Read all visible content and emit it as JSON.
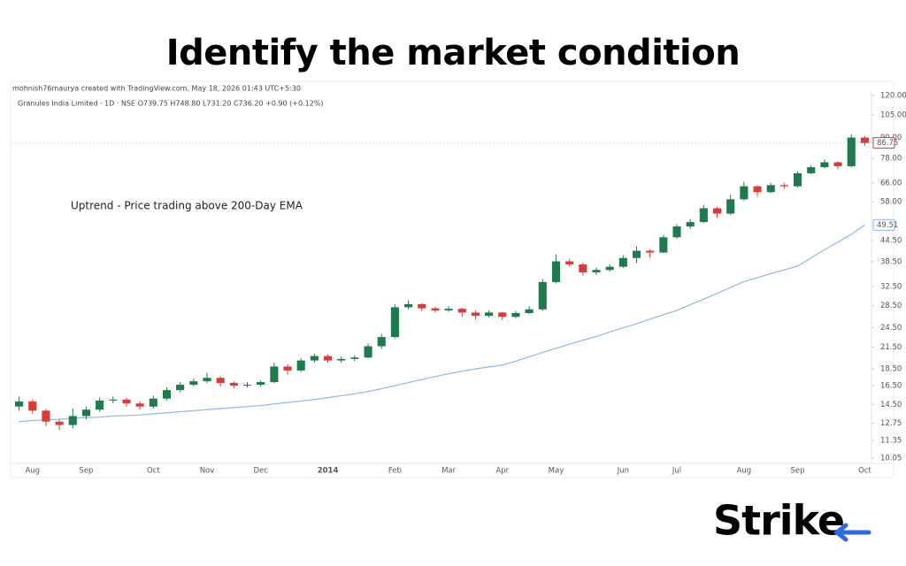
{
  "brand": "Strike",
  "chart_data": {
    "type": "candlestick",
    "title": "Identify the market condition",
    "watermark": "mohnish76maurya created with TradingView.com, May 18, 2026 01:43 UTC+5:30",
    "symbol_info": "Granules India Limited · 1D · NSE  O739.75  H748.80  L731.20  C736.20  +0.90 (+0.12%)",
    "annotation": "Uptrend - Price trading above 200-Day EMA",
    "categories": [
      null,
      "Aug",
      null,
      null,
      null,
      "Sep",
      null,
      null,
      null,
      null,
      "Oct",
      null,
      null,
      null,
      "Nov",
      null,
      null,
      null,
      "Dec",
      null,
      null,
      null,
      null,
      "2014",
      null,
      null,
      null,
      null,
      "Feb",
      null,
      null,
      null,
      "Mar",
      null,
      null,
      null,
      "Apr",
      null,
      null,
      null,
      "May",
      null,
      null,
      null,
      null,
      "Jun",
      null,
      null,
      null,
      "Jul",
      null,
      null,
      null,
      null,
      "Aug",
      null,
      null,
      null,
      "Sep",
      null,
      null,
      null,
      null,
      "Oct"
    ],
    "open": [
      14.3,
      14.8,
      13.9,
      12.9,
      12.6,
      13.4,
      14.0,
      14.9,
      15.0,
      14.6,
      14.3,
      15.1,
      16.0,
      16.6,
      17.0,
      17.4,
      16.8,
      16.5,
      16.6,
      16.9,
      18.8,
      18.3,
      19.6,
      20.2,
      19.6,
      19.8,
      20.0,
      21.6,
      23.0,
      28.2,
      28.8,
      28.0,
      27.6,
      27.9,
      27.2,
      26.6,
      27.2,
      26.4,
      27.1,
      27.8,
      33.5,
      38.6,
      37.8,
      35.8,
      36.4,
      37.2,
      39.5,
      41.5,
      41.0,
      45.5,
      49.0,
      50.5,
      55.5,
      53.5,
      59.0,
      64.5,
      62.0,
      65.0,
      64.5,
      70.5,
      73.5,
      76.0,
      74.0,
      90.0
    ],
    "high": [
      15.3,
      15.0,
      14.1,
      13.1,
      14.1,
      14.3,
      15.2,
      15.3,
      15.2,
      14.8,
      15.4,
      16.3,
      16.9,
      17.3,
      18.0,
      17.6,
      17.0,
      16.9,
      17.1,
      19.3,
      19.1,
      19.9,
      20.5,
      20.4,
      20.1,
      20.3,
      22.0,
      23.5,
      28.8,
      29.6,
      29.0,
      28.3,
      28.4,
      28.1,
      27.6,
      27.6,
      27.3,
      27.5,
      28.4,
      34.2,
      40.5,
      39.2,
      38.2,
      37.0,
      37.8,
      40.2,
      42.8,
      42.0,
      46.2,
      49.8,
      51.5,
      56.8,
      56.0,
      61.0,
      66.5,
      65.0,
      66.0,
      66.0,
      71.5,
      74.5,
      77.5,
      76.5,
      92.0,
      91.0
    ],
    "low": [
      13.9,
      13.6,
      12.5,
      12.2,
      12.3,
      13.1,
      13.8,
      14.6,
      14.3,
      14.0,
      14.1,
      14.9,
      15.8,
      16.4,
      16.8,
      16.4,
      16.2,
      16.3,
      16.4,
      16.8,
      17.8,
      18.1,
      19.3,
      19.3,
      19.3,
      19.5,
      19.9,
      21.2,
      22.8,
      27.8,
      27.5,
      27.2,
      27.3,
      26.4,
      25.9,
      26.3,
      25.8,
      26.2,
      26.9,
      27.6,
      33.2,
      37.2,
      35.0,
      35.2,
      36.0,
      36.9,
      38.2,
      39.6,
      40.8,
      45.0,
      48.2,
      50.2,
      52.0,
      53.0,
      58.5,
      60.0,
      61.5,
      63.5,
      64.0,
      70.0,
      73.0,
      72.5,
      73.5,
      85.0
    ],
    "close": [
      14.8,
      13.9,
      12.9,
      12.6,
      13.4,
      14.0,
      14.9,
      15.0,
      14.6,
      14.3,
      15.1,
      16.0,
      16.6,
      17.0,
      17.4,
      16.8,
      16.5,
      16.6,
      16.9,
      18.8,
      18.3,
      19.6,
      20.2,
      19.6,
      19.8,
      20.0,
      21.6,
      23.0,
      28.2,
      28.8,
      28.0,
      27.6,
      27.9,
      27.2,
      26.6,
      27.2,
      26.4,
      27.1,
      27.8,
      33.5,
      38.6,
      37.8,
      35.8,
      36.4,
      37.2,
      39.5,
      41.5,
      41.0,
      45.5,
      49.0,
      50.5,
      55.5,
      53.5,
      59.0,
      64.5,
      62.0,
      65.0,
      64.5,
      70.5,
      73.5,
      76.0,
      74.0,
      90.0,
      86.75
    ],
    "up_color": "#1f7a4d",
    "down_color": "#d93b3b",
    "ema": {
      "color": "#8db6ec",
      "values": [
        12.9,
        13.0,
        13.05,
        13.1,
        13.2,
        13.25,
        13.3,
        13.4,
        13.45,
        13.5,
        13.6,
        13.7,
        13.8,
        13.9,
        14.0,
        14.1,
        14.2,
        14.3,
        14.4,
        14.55,
        14.7,
        14.85,
        15.0,
        15.2,
        15.4,
        15.6,
        15.85,
        16.15,
        16.5,
        16.85,
        17.2,
        17.55,
        17.9,
        18.2,
        18.5,
        18.75,
        19.0,
        19.5,
        20.1,
        20.7,
        21.3,
        21.9,
        22.5,
        23.1,
        23.8,
        24.5,
        25.2,
        26.0,
        26.8,
        27.6,
        28.7,
        29.8,
        31.0,
        32.3,
        33.6,
        34.5,
        35.5,
        36.4,
        37.4,
        39.5,
        41.8,
        44.0,
        46.5,
        49.51
      ]
    },
    "log_scale": true,
    "grid": false,
    "ylim": [
      10.05,
      120
    ],
    "yticks": [
      10.05,
      11.35,
      12.75,
      {
        "value": 14.5,
        "label": "14.50"
      },
      {
        "value": 16.5,
        "label": "16.50"
      },
      {
        "value": 18.5,
        "label": "18.50"
      },
      {
        "value": 21.5,
        "label": "21.50"
      },
      {
        "value": 24.5,
        "label": "24.50"
      },
      {
        "value": 28.5,
        "label": "28.50"
      },
      {
        "value": 32.5,
        "label": "32.50"
      },
      {
        "value": 38.5,
        "label": "38.50"
      },
      {
        "value": 44.5,
        "label": "44.50"
      },
      {
        "value": 58,
        "label": "58.00"
      },
      {
        "value": 66,
        "label": "66.00"
      },
      {
        "value": 78,
        "label": "78.00"
      },
      {
        "value": 90,
        "label": "90.00"
      },
      {
        "value": 105,
        "label": "105.00"
      },
      {
        "value": 120,
        "label": "120.00"
      }
    ]
  }
}
